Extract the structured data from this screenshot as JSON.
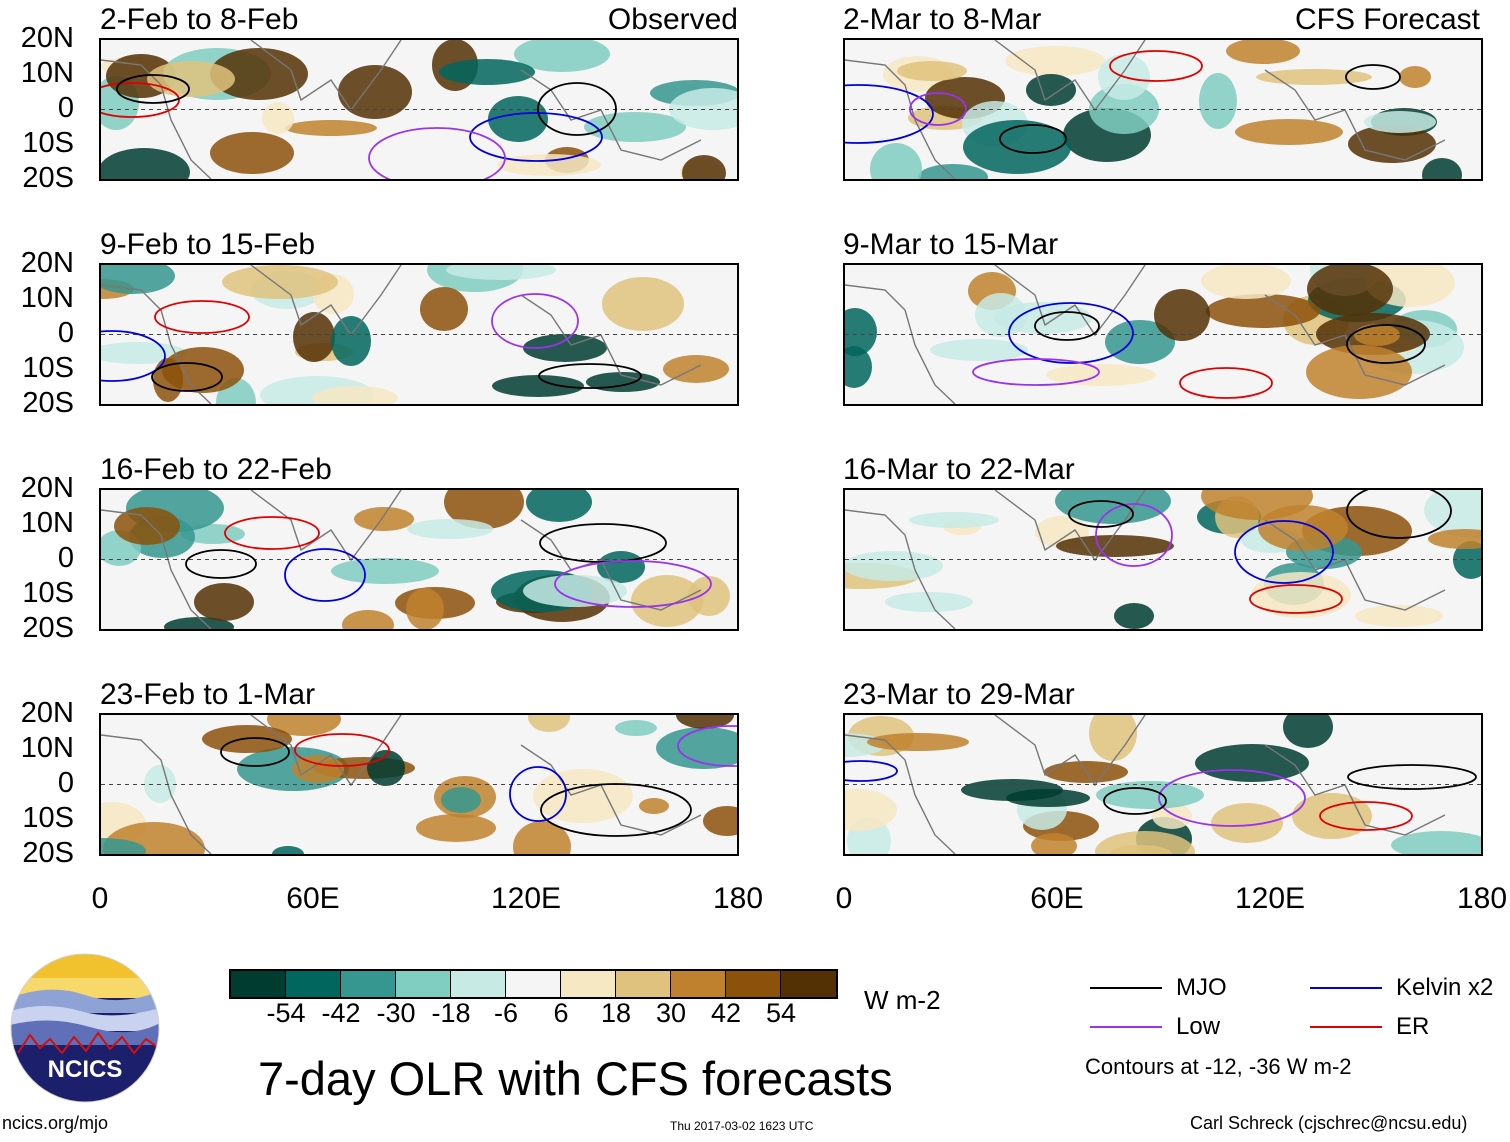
{
  "columns": {
    "observed_label": "Observed",
    "forecast_label": "CFS Forecast"
  },
  "panels": [
    {
      "title": "2-Feb to 8-Feb",
      "column": "observed"
    },
    {
      "title": "9-Feb to 15-Feb",
      "column": "observed"
    },
    {
      "title": "16-Feb to 22-Feb",
      "column": "observed"
    },
    {
      "title": "23-Feb to 1-Mar",
      "column": "observed"
    },
    {
      "title": "2-Mar to 8-Mar",
      "column": "forecast"
    },
    {
      "title": "9-Mar to 15-Mar",
      "column": "forecast"
    },
    {
      "title": "16-Mar to 22-Mar",
      "column": "forecast"
    },
    {
      "title": "23-Mar to 29-Mar",
      "column": "forecast"
    }
  ],
  "lat_ticks": [
    "20N",
    "10N",
    "0",
    "10S",
    "20S"
  ],
  "lon_ticks": [
    "0",
    "60E",
    "120E",
    "180"
  ],
  "colorbar": {
    "colors": [
      "#003c30",
      "#01665e",
      "#35978f",
      "#80cdc1",
      "#c7eae5",
      "#f5f5f5",
      "#f6e8c3",
      "#dfc27d",
      "#bf812d",
      "#8c510a",
      "#543005"
    ],
    "ticks": [
      "-54",
      "-42",
      "-30",
      "-18",
      "-6",
      "6",
      "18",
      "30",
      "42",
      "54"
    ],
    "units": "W m-2"
  },
  "title": "7-day OLR with CFS forecasts",
  "legend": [
    {
      "label": "MJO",
      "color": "#000000"
    },
    {
      "label": "Kelvin x2",
      "color": "#0000dd"
    },
    {
      "label": "Low",
      "color": "#9933ee"
    },
    {
      "label": "ER",
      "color": "#e00000"
    }
  ],
  "contour_note": "Contours at -12, -36 W m-2",
  "logo_text": "NCICS",
  "footer": {
    "left": "ncics.org/mjo",
    "center": "Thu 2017-03-02 1623 UTC",
    "right": "Carl Schreck (cjschrec@ncsu.edu)"
  }
}
